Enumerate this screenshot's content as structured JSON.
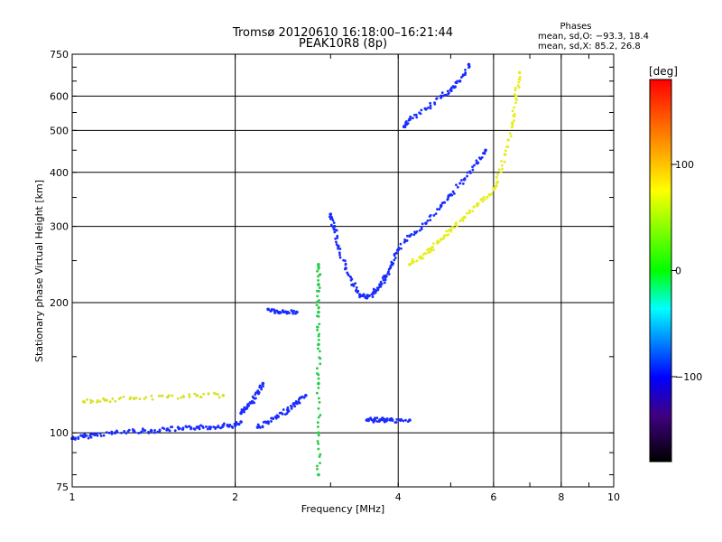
{
  "chart_data": {
    "type": "scatter",
    "title_line1": "Tromsø 20120610 16:18:00–16:21:44",
    "title_line2": "PEAK10R8 (8p)",
    "xlabel": "Frequency [MHz]",
    "ylabel": "Stationary phase Virtual Height [km]",
    "x_scale": "log",
    "y_scale": "log",
    "xlim": [
      1,
      10
    ],
    "ylim": [
      75,
      750
    ],
    "x_ticks": [
      1,
      2,
      4,
      6,
      8,
      10
    ],
    "x_tick_labels": [
      "1",
      "2",
      "4",
      "6",
      "8",
      "10"
    ],
    "x_major_grid": [
      2,
      4,
      6,
      8
    ],
    "y_ticks": [
      75,
      100,
      200,
      300,
      400,
      500,
      600,
      750
    ],
    "y_tick_labels": [
      "75",
      "100",
      "200",
      "300",
      "400",
      "500",
      "600",
      "750"
    ],
    "y_major_grid": [
      100,
      200,
      300,
      400,
      500,
      600
    ],
    "grid": true,
    "stats": {
      "heading": "Phases",
      "o_line": "mean, sd,O: −93.3, 18.4",
      "x_line": "mean, sd,X: 85.2, 26.8"
    },
    "colorbar": {
      "unit": "[deg]",
      "range": [
        -180,
        180
      ],
      "tick_values": [
        100,
        0,
        -100
      ],
      "tick_labels": [
        "100",
        "0",
        "−100"
      ],
      "colors": [
        "#ff0000",
        "#ff8000",
        "#ffff00",
        "#00ff00",
        "#00ffff",
        "#0000ff",
        "#400080",
        "#000000"
      ]
    },
    "series": [
      {
        "kind": "O-mode E trace",
        "phase_deg": -93,
        "color": "#1a2cff",
        "points": [
          [
            1.0,
            97
          ],
          [
            1.05,
            98
          ],
          [
            1.1,
            99
          ],
          [
            1.2,
            100
          ],
          [
            1.3,
            101
          ],
          [
            1.4,
            101
          ],
          [
            1.5,
            102
          ],
          [
            1.6,
            102
          ],
          [
            1.7,
            103
          ],
          [
            1.8,
            103
          ],
          [
            1.9,
            104
          ],
          [
            2.0,
            104
          ],
          [
            2.05,
            106
          ]
        ]
      },
      {
        "kind": "O-mode Es rise",
        "phase_deg": -95,
        "color": "#1a2cff",
        "points": [
          [
            2.05,
            111
          ],
          [
            2.1,
            114
          ],
          [
            2.15,
            118
          ],
          [
            2.2,
            124
          ],
          [
            2.25,
            130
          ]
        ]
      },
      {
        "kind": "O-mode secondary",
        "phase_deg": -92,
        "color": "#1a2cff",
        "points": [
          [
            2.2,
            103
          ],
          [
            2.3,
            106
          ],
          [
            2.4,
            109
          ],
          [
            2.5,
            113
          ],
          [
            2.6,
            117
          ],
          [
            2.7,
            122
          ]
        ]
      },
      {
        "kind": "O-mode F-cusp",
        "phase_deg": -90,
        "color": "#1a2cff",
        "points": [
          [
            2.3,
            193
          ],
          [
            2.4,
            190
          ],
          [
            2.5,
            190
          ],
          [
            2.6,
            190
          ]
        ]
      },
      {
        "kind": "O-mode F1",
        "phase_deg": -93,
        "color": "#1a2cff",
        "points": [
          [
            3.0,
            320
          ],
          [
            3.05,
            300
          ],
          [
            3.1,
            270
          ],
          [
            3.2,
            240
          ],
          [
            3.3,
            220
          ],
          [
            3.4,
            208
          ],
          [
            3.5,
            205
          ],
          [
            3.6,
            210
          ],
          [
            3.7,
            220
          ],
          [
            3.8,
            230
          ],
          [
            3.9,
            245
          ],
          [
            4.0,
            265
          ],
          [
            4.2,
            285
          ],
          [
            4.5,
            305
          ],
          [
            4.8,
            335
          ],
          [
            5.0,
            355
          ],
          [
            5.3,
            385
          ],
          [
            5.6,
            420
          ],
          [
            5.8,
            450
          ]
        ]
      },
      {
        "kind": "O-mode F2 upper",
        "phase_deg": -94,
        "color": "#1a2cff",
        "points": [
          [
            4.1,
            510
          ],
          [
            4.2,
            530
          ],
          [
            4.5,
            560
          ],
          [
            4.8,
            600
          ],
          [
            5.0,
            620
          ],
          [
            5.2,
            650
          ],
          [
            5.4,
            710
          ]
        ]
      },
      {
        "kind": "X-mode F",
        "phase_deg": 85,
        "color": "#e6ee1c",
        "points": [
          [
            4.2,
            245
          ],
          [
            4.4,
            255
          ],
          [
            4.6,
            265
          ],
          [
            4.8,
            280
          ],
          [
            5.0,
            295
          ],
          [
            5.3,
            315
          ],
          [
            5.6,
            335
          ],
          [
            5.9,
            355
          ],
          [
            6.1,
            380
          ],
          [
            6.3,
            440
          ],
          [
            6.5,
            520
          ],
          [
            6.6,
            600
          ],
          [
            6.7,
            680
          ]
        ]
      },
      {
        "kind": "X-mode E",
        "phase_deg": 90,
        "color": "#d9e02a",
        "points": [
          [
            1.05,
            118
          ],
          [
            1.15,
            119
          ],
          [
            1.3,
            120
          ],
          [
            1.5,
            121
          ],
          [
            1.7,
            122
          ],
          [
            1.9,
            122
          ]
        ]
      },
      {
        "kind": "Sporadic-E flat",
        "phase_deg": -92,
        "color": "#1a2cff",
        "points": [
          [
            3.5,
            107
          ],
          [
            3.6,
            107
          ],
          [
            3.7,
            107
          ],
          [
            3.8,
            107
          ],
          [
            3.9,
            107
          ],
          [
            4.2,
            107
          ]
        ]
      },
      {
        "kind": "Vertical interference",
        "phase_deg": 0,
        "color": "#22cc44",
        "points": [
          [
            2.85,
            80
          ],
          [
            2.85,
            100
          ],
          [
            2.85,
            130
          ],
          [
            2.85,
            160
          ],
          [
            2.85,
            190
          ],
          [
            2.85,
            220
          ],
          [
            2.85,
            245
          ]
        ]
      }
    ]
  }
}
